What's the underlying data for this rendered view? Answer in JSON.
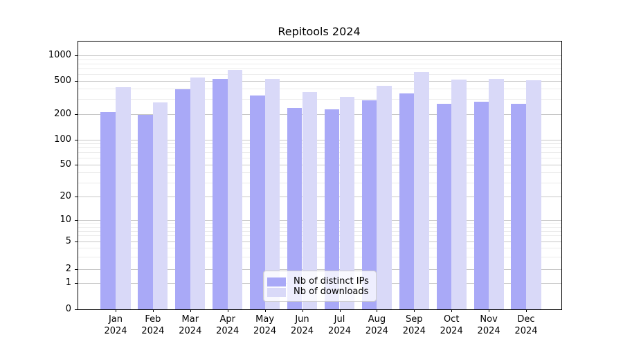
{
  "chart_data": {
    "type": "bar",
    "title": "Repitools 2024",
    "categories": [
      "Jan 2024",
      "Feb 2024",
      "Mar 2024",
      "Apr 2024",
      "May 2024",
      "Jun 2024",
      "Jul 2024",
      "Aug 2024",
      "Sep 2024",
      "Oct 2024",
      "Nov 2024",
      "Dec 2024"
    ],
    "x_tick_line1": [
      "Jan",
      "Feb",
      "Mar",
      "Apr",
      "May",
      "Jun",
      "Jul",
      "Aug",
      "Sep",
      "Oct",
      "Nov",
      "Dec"
    ],
    "x_tick_line2": "2024",
    "series": [
      {
        "name": "Nb of distinct IPs",
        "color": "#a9a9f7",
        "values": [
          210,
          195,
          395,
          520,
          330,
          235,
          225,
          292,
          355,
          265,
          280,
          262
        ]
      },
      {
        "name": "Nb of downloads",
        "color": "#d9d9f8",
        "values": [
          420,
          275,
          550,
          670,
          520,
          365,
          320,
          435,
          630,
          515,
          525,
          505
        ]
      }
    ],
    "xlabel": "",
    "ylabel": "",
    "y_axis": {
      "scale": "quasi-log (log above 1, linear 0-1)",
      "major_ticks": [
        0,
        1,
        2,
        5,
        10,
        20,
        50,
        100,
        200,
        500,
        1000
      ],
      "minor_ticks": [
        3,
        4,
        6,
        7,
        8,
        9,
        30,
        40,
        60,
        70,
        80,
        90,
        300,
        400,
        600,
        700,
        800,
        900
      ],
      "ylim": [
        0,
        1450
      ]
    },
    "grid": {
      "major": true,
      "minor": true,
      "orientation": "horizontal"
    },
    "legend_position": "inside lower-center"
  },
  "colors": {
    "bar_distinct_ips": "#a9a9f7",
    "bar_downloads": "#d9d9f8",
    "grid_major": "#c6c6c6",
    "grid_minor": "#ebebeb",
    "axis": "#000000",
    "background": "#ffffff",
    "legend_border": "#cccccc"
  }
}
